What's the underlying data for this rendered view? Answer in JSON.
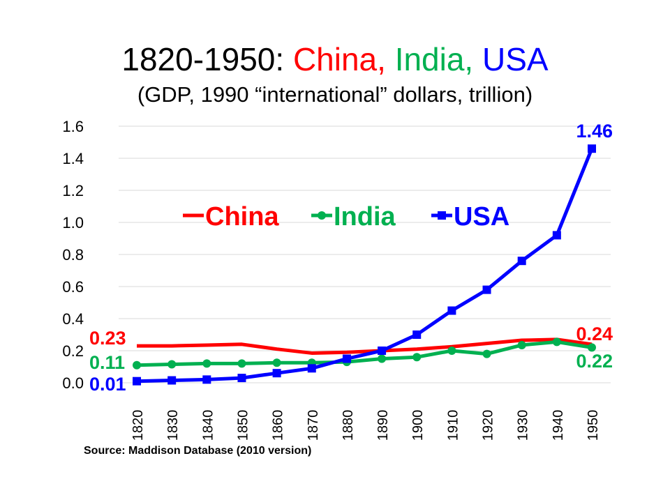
{
  "title": {
    "prefix": "1820-1950: ",
    "china": "China, ",
    "india": "India, ",
    "usa": "USA"
  },
  "subtitle": "(GDP, 1990 “international”  dollars, trillion)",
  "source": "Source:  Maddison  Database  (2010 version)",
  "chart_data": {
    "type": "line",
    "title": "1820-1950: China, India, USA",
    "subtitle": "(GDP, 1990 “international”  dollars, trillion)",
    "categories": [
      "1820",
      "1830",
      "1840",
      "1850",
      "1860",
      "1870",
      "1880",
      "1890",
      "1900",
      "1910",
      "1920",
      "1930",
      "1940",
      "1950"
    ],
    "ylim": [
      0,
      1.6
    ],
    "yticks": [
      "0.0",
      "0.2",
      "0.4",
      "0.6",
      "0.8",
      "1.0",
      "1.2",
      "1.4",
      "1.6"
    ],
    "grid": true,
    "legend_placement": "inside-top-center",
    "series": [
      {
        "name": "China",
        "color": "#ff0000",
        "marker": "none",
        "values": [
          0.23,
          0.23,
          0.235,
          0.24,
          0.21,
          0.185,
          0.19,
          0.2,
          0.21,
          0.225,
          0.245,
          0.265,
          0.27,
          0.24
        ],
        "labels": {
          "first": "0.23",
          "last": "0.24"
        }
      },
      {
        "name": "India",
        "color": "#00b050",
        "marker": "circle",
        "values": [
          0.11,
          0.115,
          0.12,
          0.12,
          0.125,
          0.125,
          0.13,
          0.15,
          0.16,
          0.2,
          0.18,
          0.235,
          0.255,
          0.22
        ],
        "labels": {
          "first": "0.11",
          "last": "0.22"
        }
      },
      {
        "name": "USA",
        "color": "#0000ff",
        "marker": "square",
        "values": [
          0.01,
          0.015,
          0.02,
          0.03,
          0.06,
          0.09,
          0.15,
          0.2,
          0.3,
          0.45,
          0.58,
          0.76,
          0.92,
          1.46
        ],
        "labels": {
          "first": "0.01",
          "last": "1.46"
        }
      }
    ]
  }
}
